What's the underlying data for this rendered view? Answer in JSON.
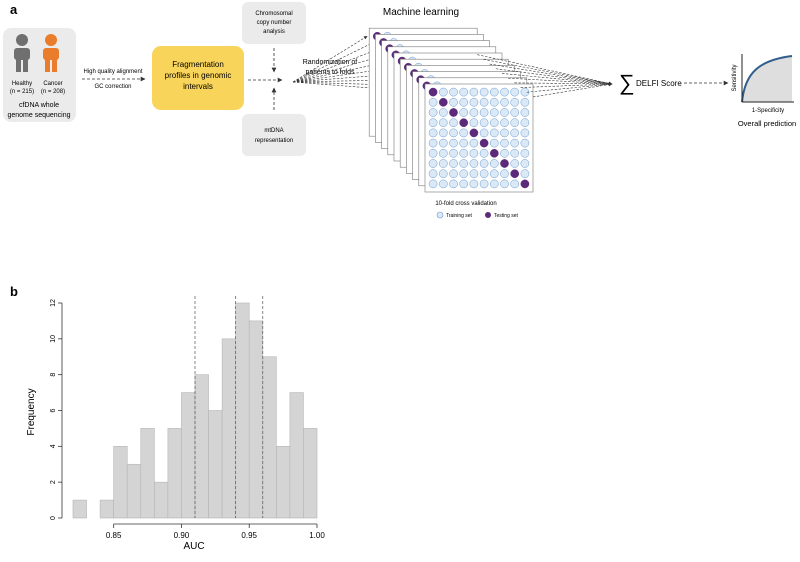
{
  "panel_a": {
    "label": "a",
    "cohort": {
      "healthy_label": "Healthy",
      "healthy_n": "(n = 215)",
      "cancer_label": "Cancer",
      "cancer_n": "(n = 208)",
      "caption_line1": "cfDNA whole",
      "caption_line2": "genome sequencing",
      "healthy_color": "#6f6f6f",
      "cancer_color": "#e97d2c"
    },
    "alignment_line1": "High quality alignment",
    "alignment_line2": "GC correction",
    "fragmentation_line1": "Fragmentation",
    "fragmentation_line2": "profiles in genomic",
    "fragmentation_line3": "intervals",
    "fragmentation_color": "#f9d45a",
    "chromosomal_line1": "Chromosomal",
    "chromosomal_line2": "copy number",
    "chromosomal_line3": "analysis",
    "mtdna_line1": "mtDNA",
    "mtdna_line2": "representation",
    "randomization_line1": "Randomization of",
    "randomization_line2": "patients to folds",
    "ml_title": "Machine learning",
    "cv_caption": "10-fold cross validation",
    "legend_training": "Training set",
    "legend_testing": "Testing set",
    "training_color": "#dbe8f6",
    "testing_color": "#5c2a7a",
    "delfi_symbol": "∑",
    "delfi_label": "DELFI Score",
    "roc_ylabel": "Sensitivity",
    "roc_xlabel": "1-Specificity",
    "roc_caption": "Overall prediction",
    "roc_curve_color": "#2f5d8c"
  },
  "panel_b": {
    "label": "b",
    "chart_data": {
      "type": "bar",
      "xlabel": "AUC",
      "ylabel": "Frequency",
      "bin_width": 0.01,
      "bin_starts": [
        0.82,
        0.83,
        0.84,
        0.85,
        0.86,
        0.87,
        0.88,
        0.89,
        0.9,
        0.91,
        0.92,
        0.93,
        0.94,
        0.95,
        0.96,
        0.97,
        0.98,
        0.99
      ],
      "values": [
        1,
        0,
        1,
        4,
        3,
        5,
        2,
        5,
        7,
        8,
        6,
        10,
        12,
        11,
        9,
        4,
        7,
        5
      ],
      "xlim": [
        0.82,
        1.0
      ],
      "ylim": [
        0,
        12
      ],
      "xticks": [
        0.85,
        0.9,
        0.95,
        1.0
      ],
      "xtick_labels": [
        "0.85",
        "0.90",
        "0.95",
        "1.00"
      ],
      "yticks": [
        0,
        2,
        4,
        6,
        8,
        10,
        12
      ],
      "ytick_labels": [
        "0",
        "2",
        "4",
        "6",
        "8",
        "10",
        "12"
      ],
      "vlines": [
        0.91,
        0.94,
        0.96
      ],
      "bar_color": "#d4d4d4",
      "bar_edge_color": "#b5b5b5",
      "grid": false
    }
  }
}
